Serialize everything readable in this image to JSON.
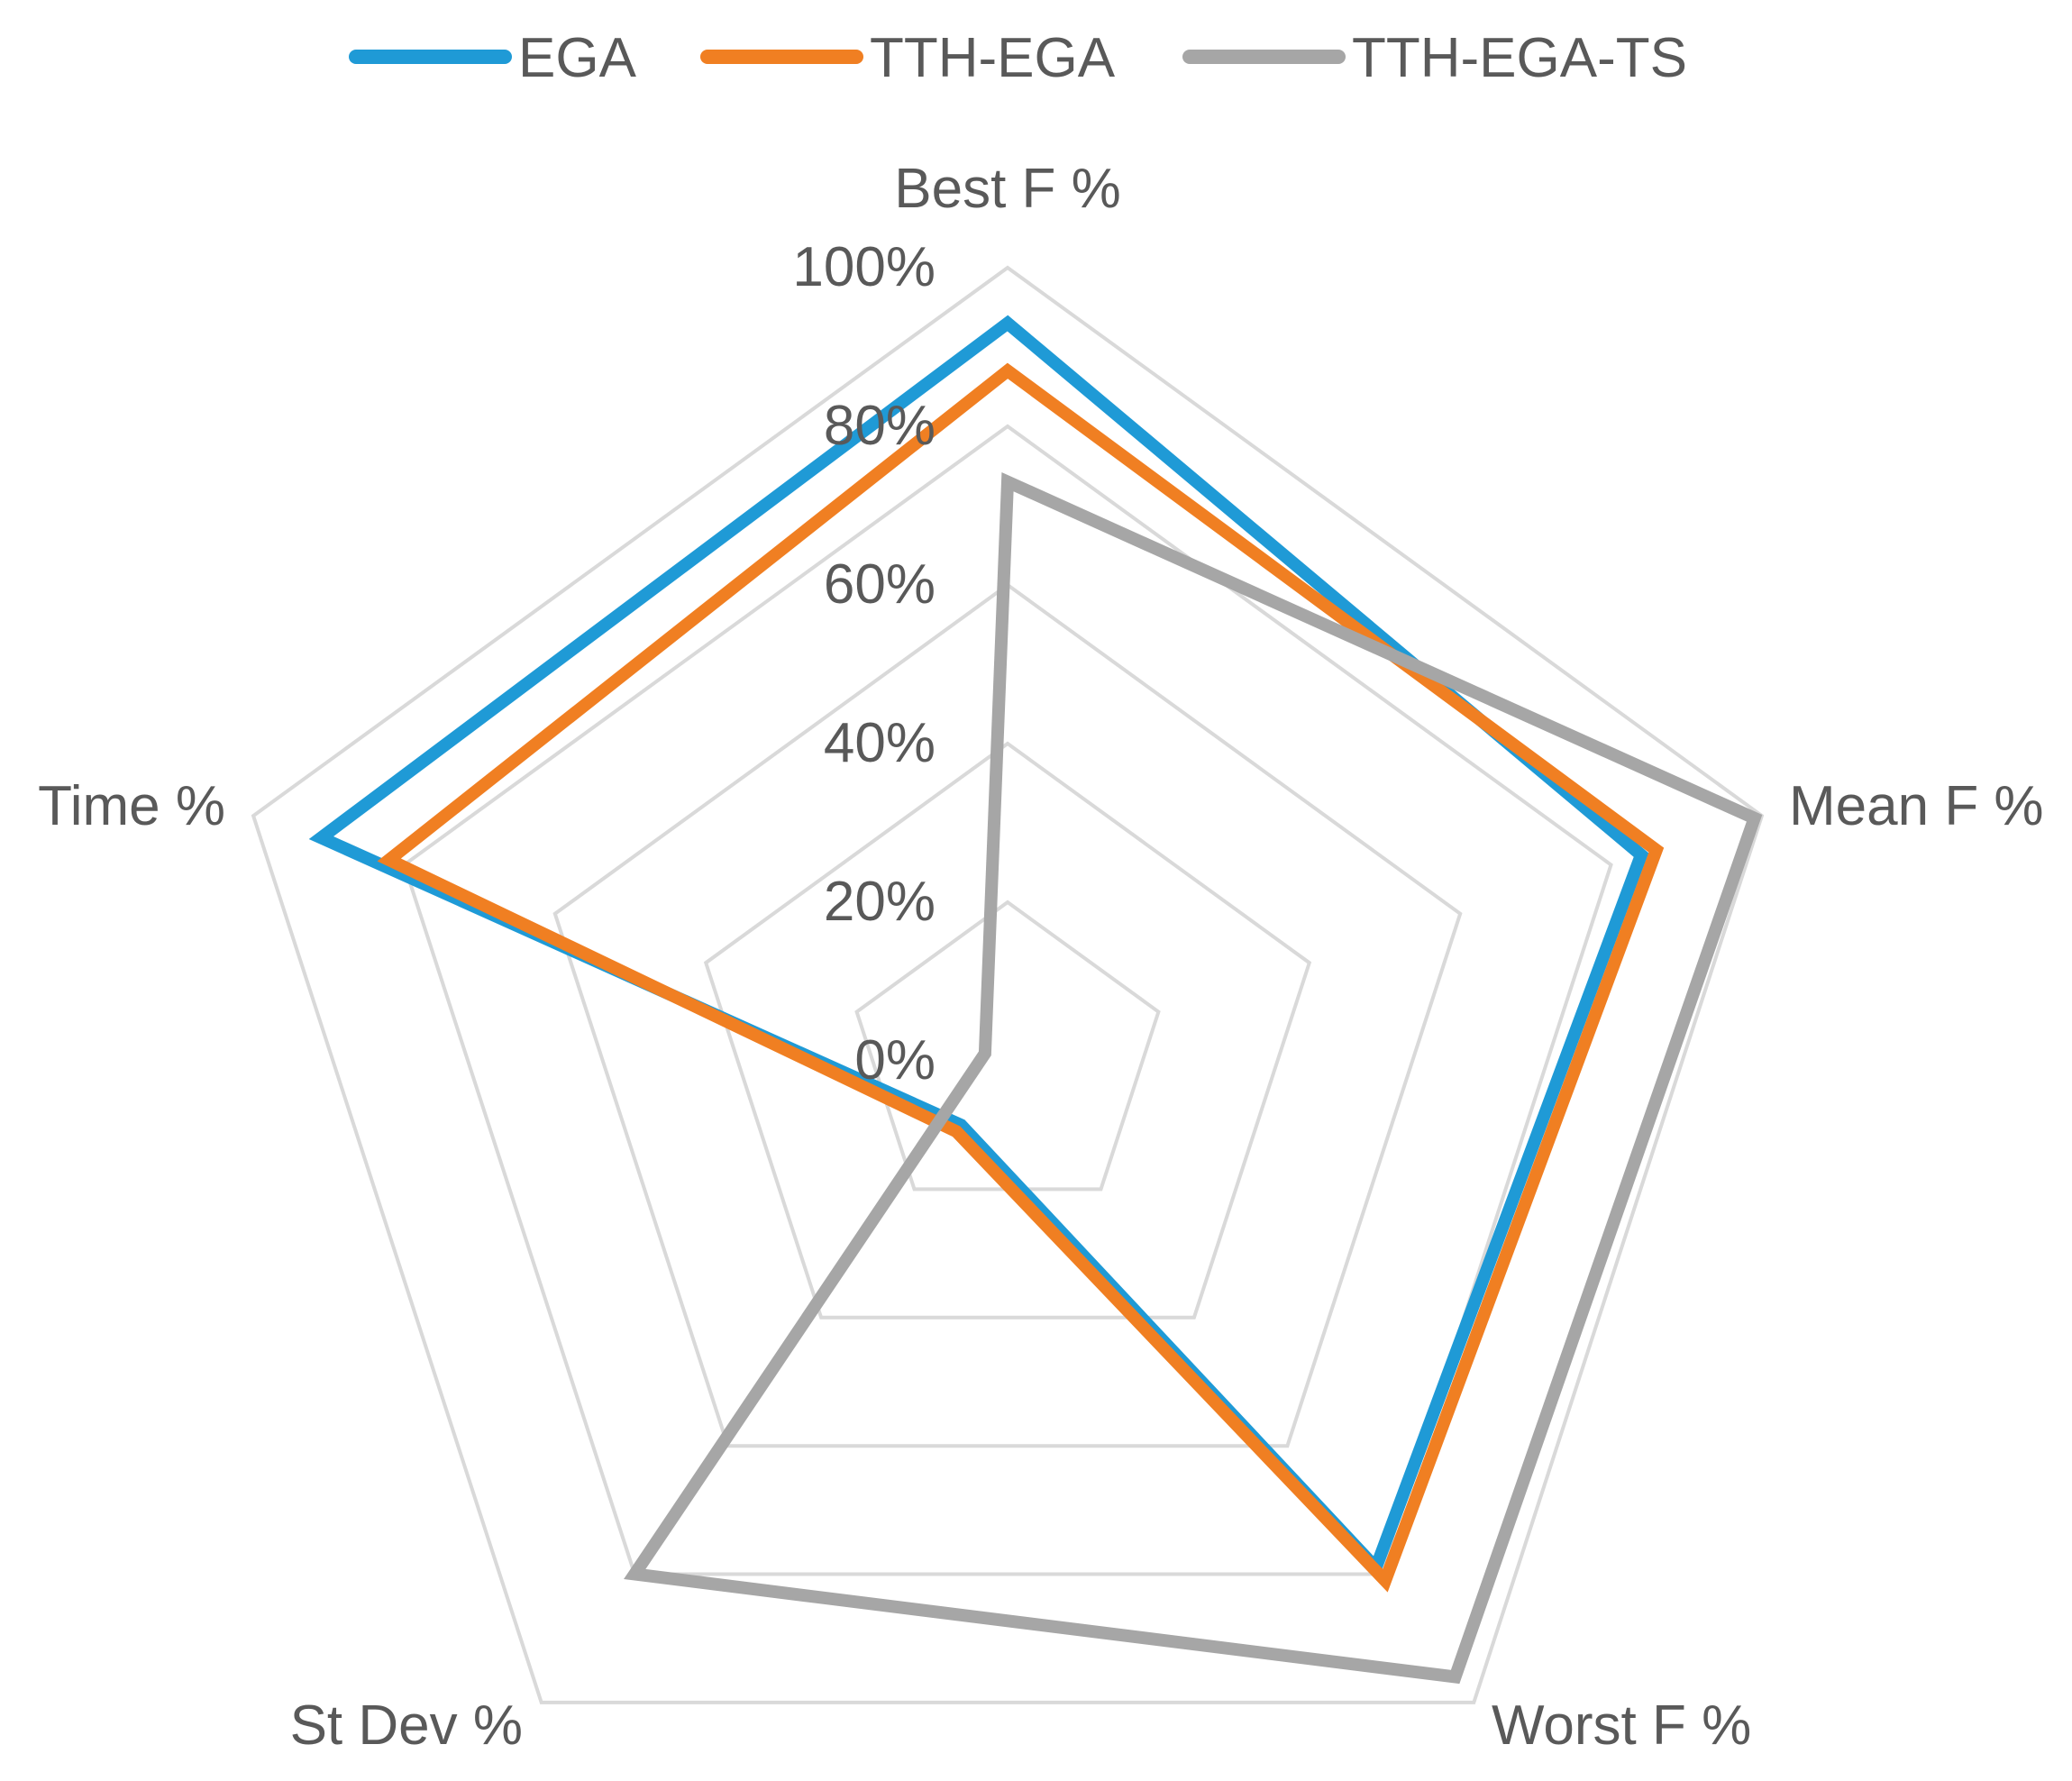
{
  "chart_data": {
    "type": "radar",
    "categories": [
      "Best F %",
      "Mean F %",
      "Worst F %",
      "St Dev %",
      "Time %"
    ],
    "r_ticks": [
      "0%",
      "20%",
      "40%",
      "60%",
      "80%",
      "100%"
    ],
    "r_range": [
      0,
      100
    ],
    "grid": true,
    "legend_position": "top",
    "series": [
      {
        "name": "EGA",
        "color": "#1F9AD6",
        "values": [
          93,
          84,
          79,
          10,
          91
        ]
      },
      {
        "name": "TTH-EGA",
        "color": "#F07F22",
        "values": [
          87,
          86,
          81,
          11,
          82
        ]
      },
      {
        "name": "TTH-EGA-TS",
        "color": "#A6A6A6",
        "values": [
          73,
          99,
          96,
          80,
          3
        ]
      }
    ],
    "colors": {
      "grid": "#D9D9D9",
      "text": "#595959"
    }
  }
}
